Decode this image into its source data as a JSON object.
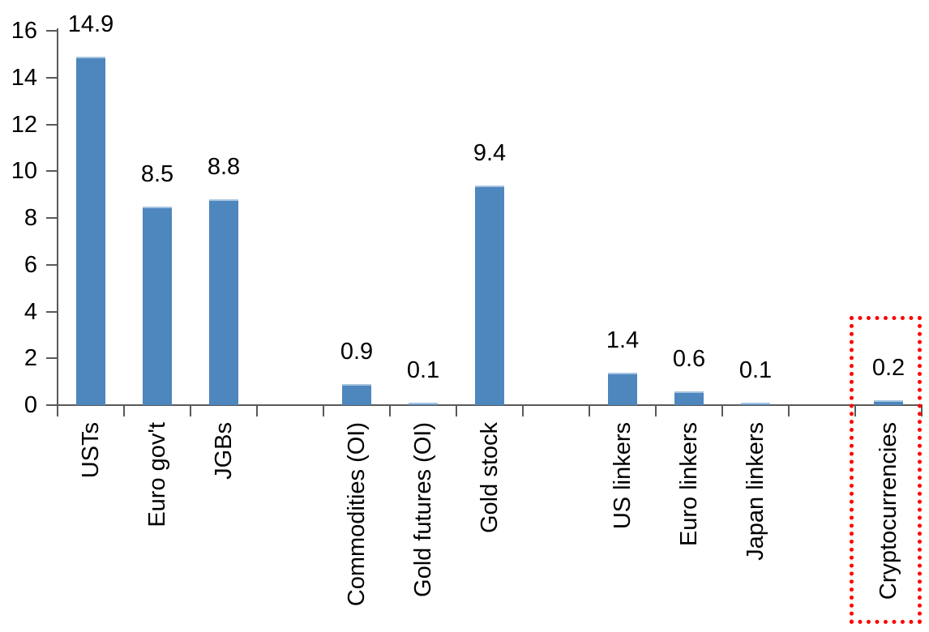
{
  "chart_data": {
    "type": "bar",
    "title": "",
    "xlabel": "",
    "ylabel": "",
    "ylim": [
      0,
      16
    ],
    "yticks": [
      0,
      2,
      4,
      6,
      8,
      10,
      12,
      14,
      16
    ],
    "grid": false,
    "legend": false,
    "categories": [
      "USTs",
      "Euro gov't",
      "JGBs",
      "",
      "Commodities (OI)",
      "Gold futures (OI)",
      "Gold stock",
      "",
      "US linkers",
      "Euro linkers",
      "Japan linkers",
      "",
      "Cryptocurrencies"
    ],
    "values": [
      14.9,
      8.5,
      8.8,
      null,
      0.9,
      0.1,
      9.4,
      null,
      1.4,
      0.6,
      0.1,
      null,
      0.2
    ],
    "data_labels": [
      "14.9",
      "8.5",
      "8.8",
      null,
      "0.9",
      "0.1",
      "9.4",
      null,
      "1.4",
      "0.6",
      "0.1",
      null,
      "0.2"
    ],
    "highlighted_category": "Cryptocurrencies",
    "colors": {
      "bar_fill": "#4E86BE",
      "bar_top_edge": "#A5C3DF",
      "axis": "#595959",
      "text": "#000000",
      "highlight_box": "#FF0000",
      "background": "#FFFFFF"
    }
  }
}
